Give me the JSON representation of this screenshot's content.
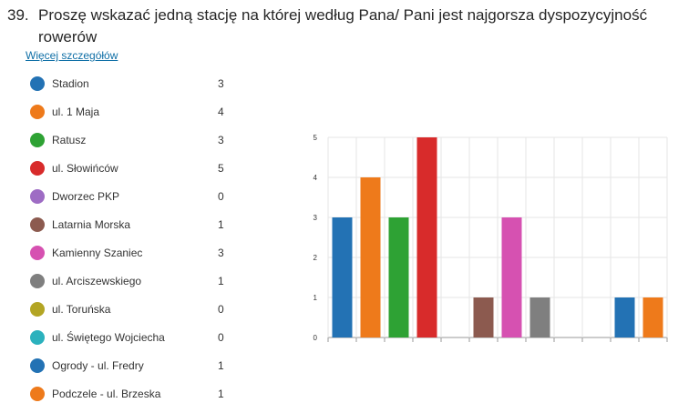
{
  "question": {
    "number": "39.",
    "text": "Proszę wskazać jedną stację na której według Pana/ Pani jest najgorsza dyspozycyjność rowerów"
  },
  "details_link": "Więcej szczegółów",
  "legend": [
    {
      "label": "Stadion",
      "count": "3",
      "color": "#2372b4"
    },
    {
      "label": "ul. 1 Maja",
      "count": "4",
      "color": "#ee7a1b"
    },
    {
      "label": "Ratusz",
      "count": "3",
      "color": "#2ea234"
    },
    {
      "label": "ul. Słowińców",
      "count": "5",
      "color": "#d82b2b"
    },
    {
      "label": "Dworzec PKP",
      "count": "0",
      "color": "#9e6cc4"
    },
    {
      "label": "Latarnia Morska",
      "count": "1",
      "color": "#8c5a4f"
    },
    {
      "label": "Kamienny Szaniec",
      "count": "3",
      "color": "#d651b1"
    },
    {
      "label": "ul. Arciszewskiego",
      "count": "1",
      "color": "#7f7f7f"
    },
    {
      "label": "ul. Toruńska",
      "count": "0",
      "color": "#b3a524"
    },
    {
      "label": "ul. Świętego Wojciecha",
      "count": "0",
      "color": "#2bb1bd"
    },
    {
      "label": "Ogrody - ul. Fredry",
      "count": "1",
      "color": "#2372b4"
    },
    {
      "label": "Podczele - ul. Brzeska",
      "count": "1",
      "color": "#ee7a1b"
    }
  ],
  "chart_data": {
    "type": "bar",
    "categories": [
      "Stadion",
      "ul. 1 Maja",
      "Ratusz",
      "ul. Słowińców",
      "Dworzec PKP",
      "Latarnia Morska",
      "Kamienny Szaniec",
      "ul. Arciszewskiego",
      "ul. Toruńska",
      "ul. Świętego Wojciecha",
      "Ogrody - ul. Fredry",
      "Podczele - ul. Brzeska"
    ],
    "values": [
      3,
      4,
      3,
      5,
      0,
      1,
      3,
      1,
      0,
      0,
      1,
      1
    ],
    "colors": [
      "#2372b4",
      "#ee7a1b",
      "#2ea234",
      "#d82b2b",
      "#9e6cc4",
      "#8c5a4f",
      "#d651b1",
      "#7f7f7f",
      "#b3a524",
      "#2bb1bd",
      "#2372b4",
      "#ee7a1b"
    ],
    "ylim": [
      0,
      5
    ],
    "yticks": [
      "0",
      "1",
      "2",
      "3",
      "4",
      "5"
    ],
    "grid": true,
    "title": "",
    "xlabel": "",
    "ylabel": ""
  }
}
